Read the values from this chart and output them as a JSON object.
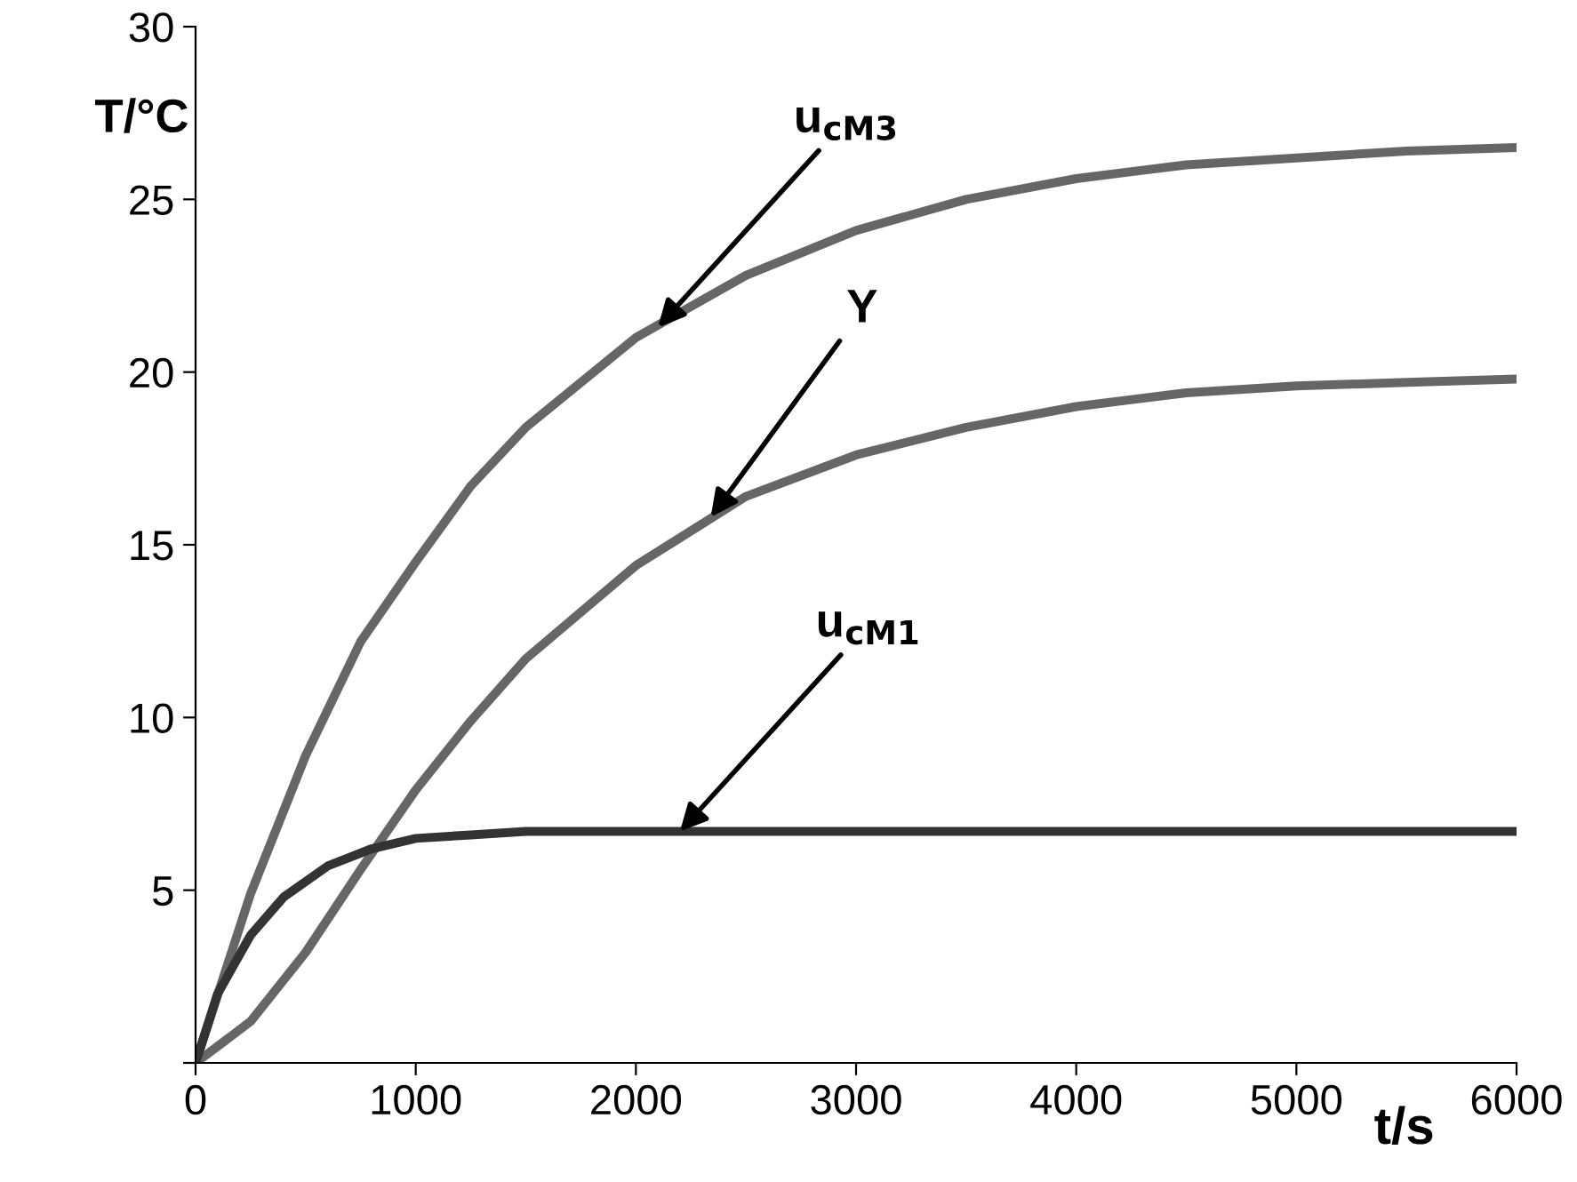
{
  "chart_data": {
    "type": "line",
    "xlabel": "t/s",
    "ylabel": "T/°C",
    "xlim": [
      0,
      6000
    ],
    "xticks": [
      0,
      1000,
      2000,
      3000,
      4000,
      5000,
      6000
    ],
    "ylim": [
      0,
      30
    ],
    "yticks": [
      {
        "value": 0,
        "label": null
      },
      5,
      10,
      15,
      20,
      25,
      30
    ],
    "grid": false,
    "legend": false,
    "marker": "none",
    "line_style": "solid",
    "series": [
      {
        "color": "#666666",
        "x": [
          0,
          250,
          500,
          750,
          1000,
          1250,
          1500,
          2000,
          2500,
          3000,
          3500,
          4000,
          4500,
          5000,
          5500,
          6000
        ],
        "values": [
          0,
          4.9,
          8.9,
          12.2,
          14.5,
          16.7,
          18.4,
          21.0,
          22.8,
          24.1,
          25.0,
          25.6,
          26.0,
          26.2,
          26.4,
          26.5
        ]
      },
      {
        "color": "#666666",
        "x": [
          0,
          250,
          500,
          750,
          1000,
          1250,
          1500,
          2000,
          2500,
          3000,
          3500,
          4000,
          4500,
          5000,
          5500,
          6000
        ],
        "values": [
          0,
          1.2,
          3.2,
          5.6,
          7.9,
          9.9,
          11.7,
          14.4,
          16.4,
          17.6,
          18.4,
          19.0,
          19.4,
          19.6,
          19.7,
          19.8
        ]
      },
      {
        "color": "#333333",
        "x": [
          0,
          100,
          250,
          400,
          600,
          800,
          1000,
          1250,
          1500,
          6000
        ],
        "values": [
          0,
          2.0,
          3.7,
          4.8,
          5.7,
          6.2,
          6.5,
          6.6,
          6.7,
          6.7
        ]
      }
    ],
    "annotations": [
      {
        "text": "u$_{cM3}$",
        "x": 2100,
        "y": 21.3
      },
      {
        "text": "Y",
        "x": 2340,
        "y": 15.8
      },
      {
        "text": "u$_{cM1}$",
        "x": 2200,
        "y": 6.7
      }
    ]
  }
}
